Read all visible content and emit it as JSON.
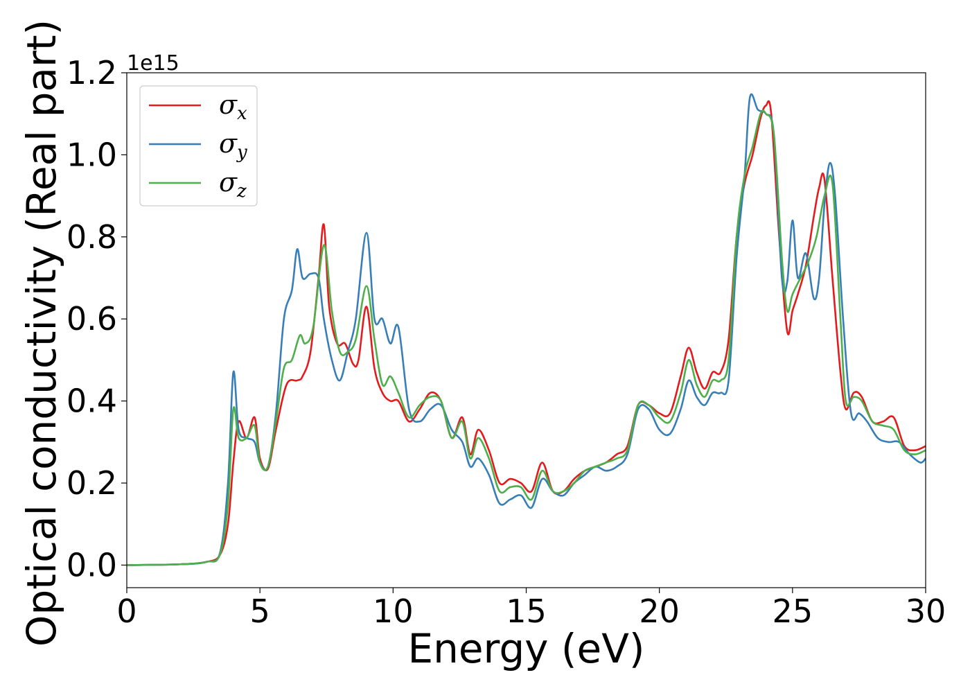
{
  "chart_data": {
    "type": "line",
    "xlabel": "Energy (eV)",
    "ylabel": "Optical conductivity (Real part)",
    "y_offset_label": "1e15",
    "xlim": [
      0,
      30
    ],
    "ylim": [
      -0.055,
      1.2
    ],
    "x_ticks": [
      0,
      5,
      10,
      15,
      20,
      25,
      30
    ],
    "y_ticks": [
      0.0,
      0.2,
      0.4,
      0.6,
      0.8,
      1.0,
      1.2
    ],
    "x_tick_labels": [
      "0",
      "5",
      "10",
      "15",
      "20",
      "25",
      "30"
    ],
    "y_tick_labels": [
      "0.0",
      "0.2",
      "0.4",
      "0.6",
      "0.8",
      "1.0",
      "1.2"
    ],
    "legend_position": "top-left",
    "grid": false,
    "series": [
      {
        "name": "σx",
        "symbol": "σ",
        "subscript": "x",
        "color": "#e41a1c",
        "x": [
          0,
          2,
          3,
          3.5,
          3.8,
          4.0,
          4.2,
          4.5,
          4.8,
          5.0,
          5.3,
          5.6,
          6.0,
          6.4,
          6.6,
          6.9,
          7.2,
          7.4,
          7.6,
          7.9,
          8.2,
          8.5,
          8.7,
          9.0,
          9.3,
          9.6,
          9.9,
          10.2,
          10.6,
          11.0,
          11.4,
          11.8,
          12.2,
          12.6,
          12.9,
          13.2,
          13.6,
          14.0,
          14.4,
          14.8,
          15.2,
          15.6,
          16.0,
          16.4,
          16.8,
          17.2,
          17.6,
          18.0,
          18.4,
          18.8,
          19.2,
          19.6,
          20.0,
          20.4,
          20.8,
          21.1,
          21.4,
          21.7,
          22.0,
          22.3,
          22.6,
          22.9,
          23.2,
          23.5,
          23.8,
          24.0,
          24.2,
          24.5,
          24.8,
          25.0,
          25.2,
          25.5,
          25.8,
          26.0,
          26.2,
          26.5,
          26.8,
          27.0,
          27.3,
          27.6,
          28.0,
          28.4,
          28.8,
          29.2,
          29.6,
          30.0
        ],
        "y": [
          0.0,
          0.002,
          0.008,
          0.025,
          0.1,
          0.25,
          0.35,
          0.31,
          0.36,
          0.26,
          0.235,
          0.33,
          0.44,
          0.45,
          0.46,
          0.52,
          0.7,
          0.83,
          0.63,
          0.54,
          0.54,
          0.49,
          0.5,
          0.63,
          0.48,
          0.42,
          0.4,
          0.4,
          0.35,
          0.38,
          0.42,
          0.4,
          0.31,
          0.36,
          0.27,
          0.33,
          0.28,
          0.2,
          0.21,
          0.2,
          0.18,
          0.25,
          0.18,
          0.18,
          0.21,
          0.23,
          0.24,
          0.25,
          0.27,
          0.29,
          0.39,
          0.39,
          0.37,
          0.37,
          0.46,
          0.53,
          0.47,
          0.43,
          0.47,
          0.47,
          0.55,
          0.8,
          0.93,
          1.0,
          1.09,
          1.12,
          1.1,
          0.8,
          0.57,
          0.62,
          0.66,
          0.73,
          0.85,
          0.92,
          0.94,
          0.7,
          0.47,
          0.38,
          0.42,
          0.41,
          0.35,
          0.35,
          0.36,
          0.29,
          0.28,
          0.29
        ]
      },
      {
        "name": "σy",
        "symbol": "σ",
        "subscript": "y",
        "color": "#377eb8",
        "x": [
          0,
          2,
          3,
          3.5,
          3.8,
          4.0,
          4.2,
          4.5,
          4.8,
          5.0,
          5.3,
          5.6,
          5.9,
          6.2,
          6.4,
          6.6,
          6.9,
          7.2,
          7.4,
          7.7,
          8.0,
          8.3,
          8.6,
          9.0,
          9.3,
          9.6,
          9.9,
          10.2,
          10.6,
          11.0,
          11.4,
          11.8,
          12.2,
          12.6,
          12.9,
          13.2,
          13.6,
          14.0,
          14.4,
          14.8,
          15.2,
          15.6,
          16.0,
          16.4,
          16.8,
          17.2,
          17.6,
          18.0,
          18.4,
          18.8,
          19.2,
          19.6,
          20.0,
          20.4,
          20.8,
          21.1,
          21.4,
          21.7,
          22.0,
          22.3,
          22.6,
          22.9,
          23.2,
          23.4,
          23.7,
          24.0,
          24.3,
          24.6,
          24.8,
          25.0,
          25.2,
          25.5,
          25.8,
          26.0,
          26.2,
          26.4,
          26.6,
          26.9,
          27.2,
          27.5,
          27.8,
          28.2,
          28.6,
          29.0,
          29.4,
          29.8,
          30.0
        ],
        "y": [
          0.0,
          0.002,
          0.008,
          0.03,
          0.2,
          0.47,
          0.33,
          0.31,
          0.3,
          0.25,
          0.24,
          0.37,
          0.6,
          0.67,
          0.77,
          0.7,
          0.71,
          0.7,
          0.6,
          0.5,
          0.45,
          0.52,
          0.6,
          0.81,
          0.6,
          0.6,
          0.54,
          0.58,
          0.38,
          0.35,
          0.38,
          0.39,
          0.33,
          0.3,
          0.24,
          0.26,
          0.22,
          0.15,
          0.16,
          0.17,
          0.14,
          0.21,
          0.18,
          0.17,
          0.2,
          0.22,
          0.24,
          0.23,
          0.24,
          0.27,
          0.38,
          0.38,
          0.33,
          0.32,
          0.38,
          0.45,
          0.41,
          0.39,
          0.42,
          0.42,
          0.45,
          0.75,
          0.95,
          1.14,
          1.11,
          1.1,
          1.05,
          0.7,
          0.69,
          0.84,
          0.7,
          0.76,
          0.65,
          0.7,
          0.88,
          0.98,
          0.9,
          0.6,
          0.37,
          0.37,
          0.35,
          0.31,
          0.3,
          0.3,
          0.27,
          0.25,
          0.26
        ]
      },
      {
        "name": "σz",
        "symbol": "σ",
        "subscript": "z",
        "color": "#4daf4a",
        "x": [
          0,
          2,
          3,
          3.5,
          3.8,
          4.0,
          4.2,
          4.5,
          4.8,
          5.0,
          5.3,
          5.6,
          5.9,
          6.2,
          6.5,
          6.7,
          7.0,
          7.4,
          7.7,
          8.0,
          8.3,
          8.6,
          9.0,
          9.3,
          9.6,
          9.9,
          10.2,
          10.6,
          11.0,
          11.4,
          11.8,
          12.2,
          12.6,
          12.9,
          13.2,
          13.6,
          14.0,
          14.4,
          14.8,
          15.2,
          15.6,
          16.0,
          16.4,
          16.8,
          17.2,
          17.6,
          18.0,
          18.4,
          18.8,
          19.2,
          19.6,
          20.0,
          20.4,
          20.8,
          21.1,
          21.4,
          21.7,
          22.0,
          22.3,
          22.6,
          22.9,
          23.2,
          23.5,
          23.8,
          24.0,
          24.3,
          24.6,
          24.8,
          25.0,
          25.3,
          25.6,
          25.9,
          26.2,
          26.5,
          26.8,
          27.0,
          27.3,
          27.6,
          28.0,
          28.4,
          28.8,
          29.2,
          29.6,
          30.0
        ],
        "y": [
          0.0,
          0.002,
          0.008,
          0.026,
          0.15,
          0.38,
          0.31,
          0.31,
          0.34,
          0.25,
          0.24,
          0.35,
          0.48,
          0.5,
          0.56,
          0.54,
          0.58,
          0.78,
          0.62,
          0.52,
          0.52,
          0.55,
          0.68,
          0.55,
          0.44,
          0.46,
          0.42,
          0.36,
          0.39,
          0.41,
          0.4,
          0.31,
          0.35,
          0.26,
          0.31,
          0.26,
          0.18,
          0.19,
          0.19,
          0.16,
          0.23,
          0.18,
          0.18,
          0.2,
          0.23,
          0.24,
          0.25,
          0.26,
          0.28,
          0.39,
          0.39,
          0.36,
          0.35,
          0.42,
          0.5,
          0.44,
          0.41,
          0.45,
          0.45,
          0.5,
          0.8,
          0.95,
          1.02,
          1.1,
          1.1,
          1.05,
          0.75,
          0.62,
          0.66,
          0.7,
          0.74,
          0.8,
          0.9,
          0.93,
          0.6,
          0.4,
          0.41,
          0.4,
          0.35,
          0.34,
          0.33,
          0.28,
          0.27,
          0.28
        ]
      }
    ]
  }
}
